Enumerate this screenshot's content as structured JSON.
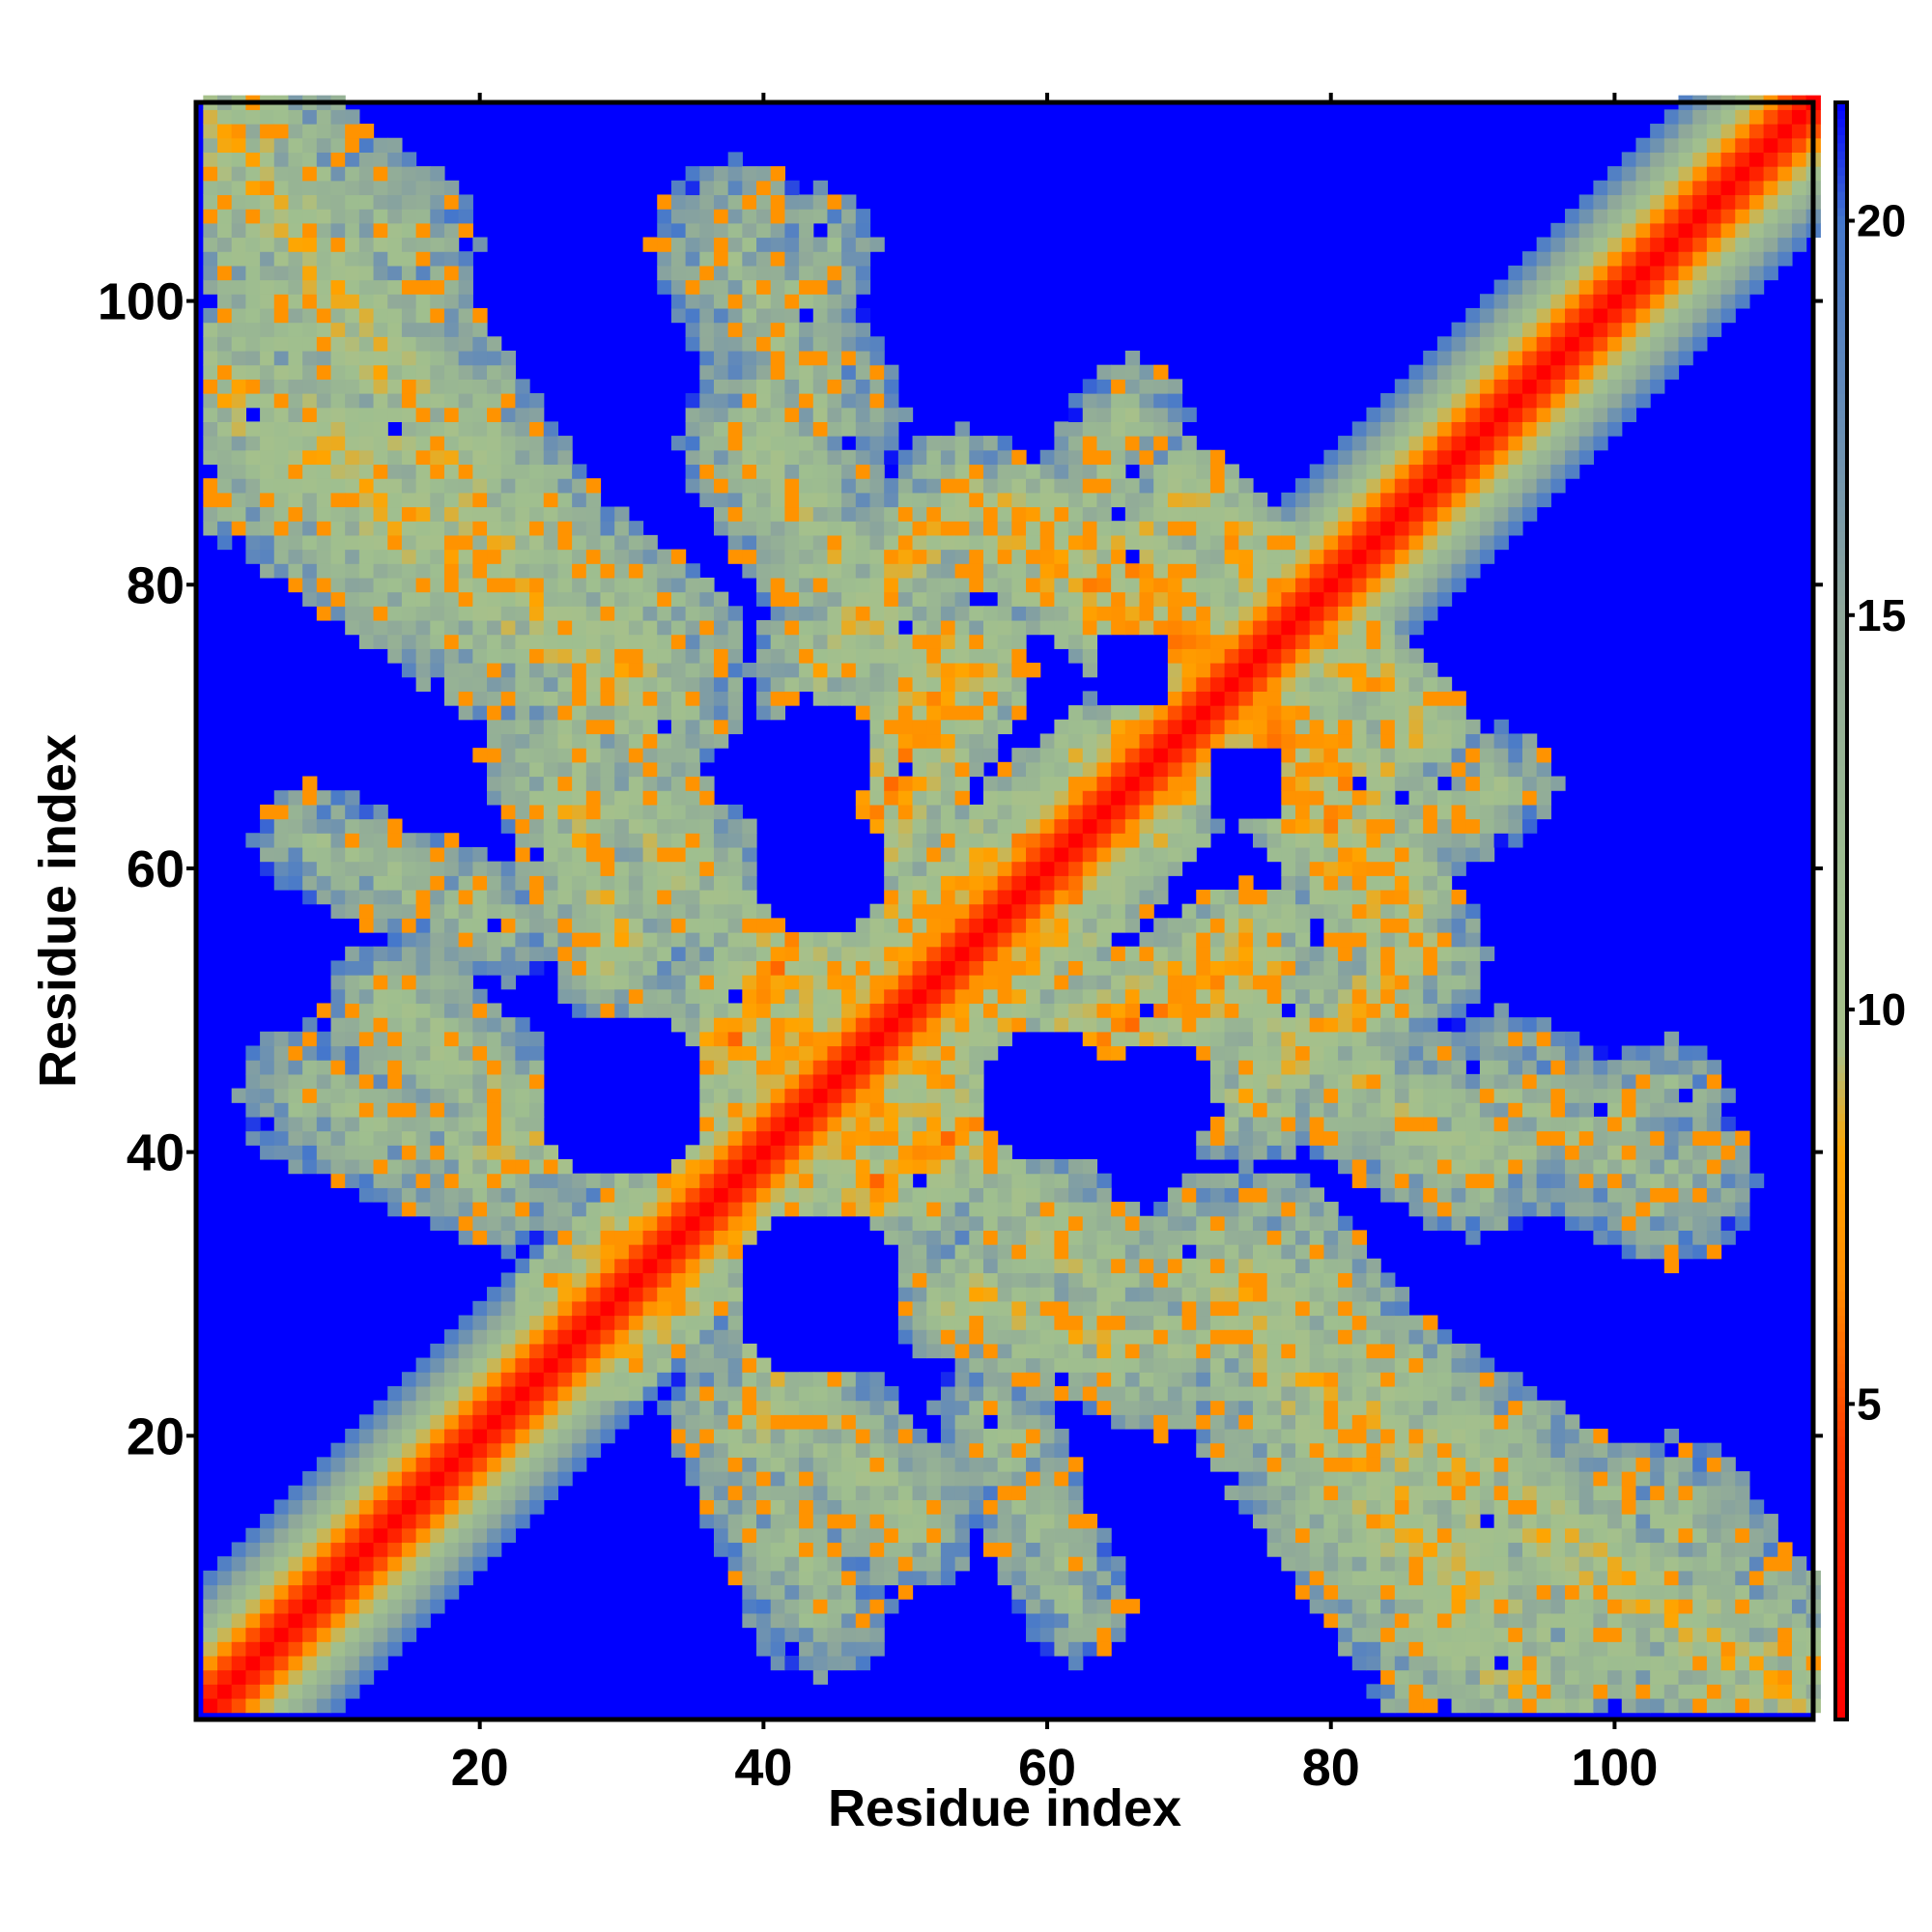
{
  "chart_data": {
    "type": "heatmap",
    "title": "",
    "xlabel": "Residue index",
    "ylabel": "Residue index",
    "n_residues": 114,
    "xlim": [
      1,
      114
    ],
    "ylim": [
      1,
      114
    ],
    "x_ticks": [
      20,
      40,
      60,
      80,
      100
    ],
    "y_ticks": [
      20,
      40,
      60,
      80,
      100
    ],
    "colorbar": {
      "range": [
        1,
        21.5
      ],
      "ticks": [
        5,
        10,
        15,
        20
      ],
      "stops": [
        {
          "value": 1.0,
          "color": "#ff0000"
        },
        {
          "value": 4.5,
          "color": "#ff3b00"
        },
        {
          "value": 6.5,
          "color": "#ff8c00"
        },
        {
          "value": 8.2,
          "color": "#ffa500"
        },
        {
          "value": 9.5,
          "color": "#a7c08a"
        },
        {
          "value": 11.5,
          "color": "#9fbf8f"
        },
        {
          "value": 15.0,
          "color": "#8fa89a"
        },
        {
          "value": 18.0,
          "color": "#5f88bb"
        },
        {
          "value": 20.0,
          "color": "#4477cc"
        },
        {
          "value": 21.5,
          "color": "#0000ff"
        }
      ]
    },
    "background_value": 21.5,
    "diagonal_band": {
      "min_value": 1,
      "value_per_residue_offset": 2.0,
      "half_width": 9
    },
    "contact_segments": [
      {
        "from": [
          2,
          94
        ],
        "to": [
          30,
          74
        ],
        "width": 9,
        "value": 11
      },
      {
        "from": [
          2,
          112
        ],
        "to": [
          14,
          104
        ],
        "width": 6,
        "value": 13
      },
      {
        "from": [
          38,
          48
        ],
        "to": [
          54,
          74
        ],
        "width": 5,
        "value": 9
      },
      {
        "from": [
          46,
          40
        ],
        "to": [
          70,
          68
        ],
        "width": 5,
        "value": 9
      },
      {
        "from": [
          36,
          36
        ],
        "to": [
          28,
          28
        ],
        "width": 6,
        "value": 8
      },
      {
        "from": [
          66,
          82
        ],
        "to": [
          84,
          58
        ],
        "width": 5,
        "value": 9
      },
      {
        "from": [
          70,
          86
        ],
        "to": [
          80,
          76
        ],
        "width": 4,
        "value": 10
      },
      {
        "from": [
          40,
          44
        ],
        "to": [
          20,
          40
        ],
        "width": 6,
        "value": 12
      },
      {
        "from": [
          8,
          44
        ],
        "to": [
          22,
          38
        ],
        "width": 5,
        "value": 13
      },
      {
        "from": [
          26,
          68
        ],
        "to": [
          36,
          58
        ],
        "width": 6,
        "value": 12
      },
      {
        "from": [
          40,
          26
        ],
        "to": [
          50,
          14
        ],
        "width": 5,
        "value": 12
      },
      {
        "from": [
          56,
          22
        ],
        "to": [
          62,
          8
        ],
        "width": 4,
        "value": 13
      },
      {
        "from": [
          40,
          92
        ],
        "to": [
          44,
          104
        ],
        "width": 4,
        "value": 13
      },
      {
        "from": [
          60,
          82
        ],
        "to": [
          66,
          92
        ],
        "width": 4,
        "value": 13
      },
      {
        "from": [
          92,
          44
        ],
        "to": [
          104,
          38
        ],
        "width": 6,
        "value": 13
      },
      {
        "from": [
          74,
          50
        ],
        "to": [
          90,
          40
        ],
        "width": 6,
        "value": 12
      },
      {
        "from": [
          54,
          30
        ],
        "to": [
          66,
          26
        ],
        "width": 5,
        "value": 11
      },
      {
        "from": [
          76,
          26
        ],
        "to": [
          112,
          2
        ],
        "width": 8,
        "value": 11
      },
      {
        "from": [
          74,
          44
        ],
        "to": [
          86,
          54
        ],
        "width": 5,
        "value": 11
      }
    ],
    "void_regions": [
      {
        "center": [
          30,
          44
        ],
        "radius": 6
      },
      {
        "center": [
          44,
          30
        ],
        "radius": 6
      },
      {
        "center": [
          60,
          44
        ],
        "radius": 5
      },
      {
        "center": [
          44,
          60
        ],
        "radius": 5
      },
      {
        "center": [
          44,
          68
        ],
        "radius": 4
      },
      {
        "center": [
          68,
          44
        ],
        "radius": 4
      },
      {
        "center": [
          74,
          66
        ],
        "radius": 3
      },
      {
        "center": [
          66,
          74
        ],
        "radius": 3
      }
    ],
    "seed": 7
  }
}
